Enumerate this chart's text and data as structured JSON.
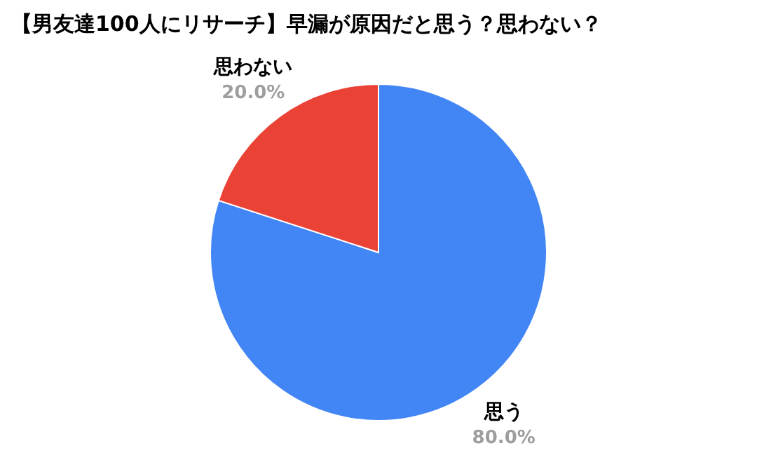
{
  "chart_data": {
    "type": "pie",
    "title": "【男友達100人にリサーチ】早漏が原因だと思う？思わない？",
    "categories": [
      "思う",
      "思わない"
    ],
    "values": [
      80,
      20
    ],
    "colors": [
      "#4285f4",
      "#ea4335"
    ],
    "value_labels": [
      "80.0%",
      "20.0%"
    ],
    "legend": false
  }
}
